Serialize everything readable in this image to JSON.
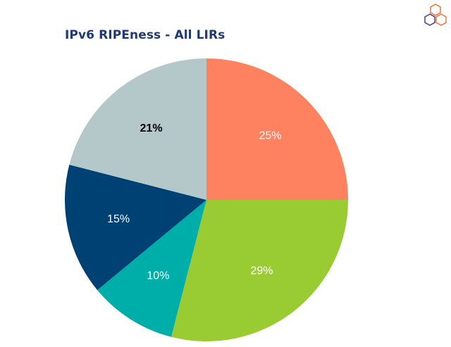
{
  "title": "IPv6 RIPEness - All LIRs",
  "colors": {
    "title": "#1f3a73",
    "logo_orange": "#f07c4a",
    "logo_purple": "#5a4a8a"
  },
  "logo": {
    "icon": "ripe-ncc-hexagon-logo-icon"
  },
  "chart_data": {
    "type": "pie",
    "start_angle_deg": 0,
    "direction": "clockwise",
    "slices": [
      {
        "value": 25,
        "label": "25%",
        "color": "#fe8160",
        "label_color": "#ffffff",
        "label_weight": "normal"
      },
      {
        "value": 29,
        "label": "29%",
        "color": "#99cc33",
        "label_color": "#ffffff",
        "label_weight": "normal"
      },
      {
        "value": 10,
        "label": "10%",
        "color": "#00aea9",
        "label_color": "#ffffff",
        "label_weight": "normal"
      },
      {
        "value": 15,
        "label": "15%",
        "color": "#004173",
        "label_color": "#ffffff",
        "label_weight": "normal"
      },
      {
        "value": 21,
        "label": "21%",
        "color": "#b4c8ca",
        "label_color": "#000000",
        "label_weight": "bold"
      }
    ]
  }
}
